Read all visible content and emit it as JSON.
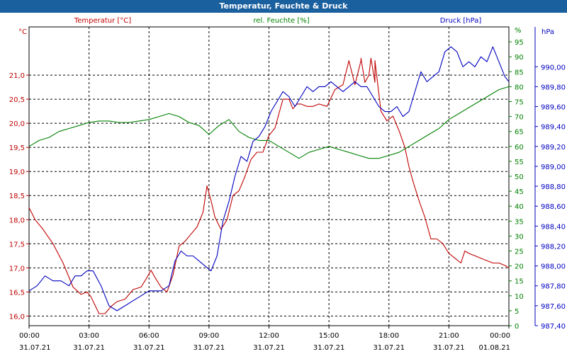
{
  "window": {
    "title": "Temperatur, Feuchte & Druck"
  },
  "chart_data": {
    "type": "line",
    "title": "Temperatur, Feuchte & Druck",
    "x_ticks": [
      {
        "time": "00:00",
        "date": "31.07.21"
      },
      {
        "time": "03:00",
        "date": "31.07.21"
      },
      {
        "time": "06:00",
        "date": "31.07.21"
      },
      {
        "time": "09:00",
        "date": "31.07.21"
      },
      {
        "time": "12:00",
        "date": "31.07.21"
      },
      {
        "time": "15:00",
        "date": "31.07.21"
      },
      {
        "time": "18:00",
        "date": "31.07.21"
      },
      {
        "time": "21:00",
        "date": "31.07.21"
      },
      {
        "time": "00:00",
        "date": "01.08.21"
      }
    ],
    "x_range_hours": [
      0,
      24
    ],
    "grid": true,
    "axes": {
      "temperature": {
        "label": "Temperatur [°C]",
        "unit": "°C",
        "range": [
          15.8,
          22.0
        ],
        "ticks": [
          "16,0",
          "16,5",
          "17,0",
          "17,5",
          "18,0",
          "18,5",
          "19,0",
          "19,5",
          "20,0",
          "20,5",
          "21,0"
        ],
        "tick_values": [
          16.0,
          16.5,
          17.0,
          17.5,
          18.0,
          18.5,
          19.0,
          19.5,
          20.0,
          20.5,
          21.0
        ],
        "color": "#c00000"
      },
      "humidity": {
        "label": "rel. Feuchte [%]",
        "unit": "%",
        "range": [
          0,
          100
        ],
        "ticks": [
          "0",
          "5",
          "10",
          "15",
          "20",
          "25",
          "30",
          "35",
          "40",
          "45",
          "50",
          "55",
          "60",
          "65",
          "70",
          "75",
          "80",
          "85",
          "90",
          "95"
        ],
        "tick_values": [
          0,
          5,
          10,
          15,
          20,
          25,
          30,
          35,
          40,
          45,
          50,
          55,
          60,
          65,
          70,
          75,
          80,
          85,
          90,
          95
        ],
        "unit_tick": "%",
        "color": "#008000"
      },
      "pressure": {
        "label": "Druck [hPa]",
        "unit": "hPa",
        "range": [
          987.4,
          990.4
        ],
        "ticks": [
          "987,40",
          "987,60",
          "987,80",
          "988,00",
          "988,20",
          "988,40",
          "988,60",
          "988,80",
          "989,00",
          "989,20",
          "989,40",
          "989,60",
          "989,80",
          "990,00"
        ],
        "tick_values": [
          987.4,
          987.6,
          987.8,
          988.0,
          988.2,
          988.4,
          988.6,
          988.8,
          989.0,
          989.2,
          989.4,
          989.6,
          989.8,
          990.0
        ],
        "color": "#0000c0"
      }
    },
    "series": [
      {
        "name": "Temperatur [°C]",
        "axis": "temperature",
        "color": "#c00000",
        "x": [
          0,
          0.3,
          0.7,
          1.2,
          1.7,
          2.2,
          2.6,
          2.9,
          3.1,
          3.5,
          3.8,
          4.1,
          4.4,
          4.8,
          5.2,
          5.6,
          5.9,
          6.1,
          6.3,
          6.6,
          6.9,
          7.2,
          7.5,
          7.8,
          8.1,
          8.4,
          8.7,
          8.9,
          9.1,
          9.3,
          9.6,
          9.9,
          10.2,
          10.5,
          10.8,
          11.1,
          11.4,
          11.7,
          12.0,
          12.3,
          12.5,
          12.7,
          13.0,
          13.2,
          13.4,
          13.6,
          13.9,
          14.2,
          14.5,
          14.9,
          15.3,
          15.7,
          16.0,
          16.3,
          16.6,
          16.8,
          17.0,
          17.3,
          17.6,
          17.9,
          18.2,
          18.5,
          18.8,
          19.0,
          19.2,
          19.5,
          19.8,
          20.1,
          20.4,
          20.7,
          21.0,
          21.3,
          21.6,
          21.8,
          22.0,
          22.3,
          22.6,
          22.9,
          23.2,
          23.5,
          23.8,
          24.0
        ],
        "values": [
          18.25,
          18.0,
          17.8,
          17.5,
          17.1,
          16.6,
          16.45,
          16.5,
          16.4,
          16.05,
          16.05,
          16.2,
          16.3,
          16.35,
          16.55,
          16.6,
          16.8,
          16.95,
          16.8,
          16.6,
          16.5,
          16.85,
          17.45,
          17.55,
          17.7,
          17.85,
          18.15,
          18.7,
          18.4,
          18.05,
          17.8,
          18.0,
          18.5,
          18.6,
          18.9,
          19.25,
          19.4,
          19.4,
          19.75,
          19.9,
          20.2,
          20.5,
          20.5,
          20.3,
          20.4,
          20.4,
          20.35,
          20.35,
          20.4,
          20.35,
          20.7,
          20.8,
          21.3,
          20.8,
          21.3,
          20.85,
          21.0,
          20.85,
          20.25,
          20.05,
          20.15,
          19.85,
          19.5,
          19.1,
          18.8,
          18.4,
          18.05,
          17.6,
          17.6,
          17.5,
          17.3,
          17.2,
          17.1,
          17.35,
          17.3,
          17.25,
          17.2,
          17.15,
          17.1,
          17.1,
          17.05,
          17.0
        ],
        "peak_values": {
          "at": [
            16.6,
            17.1,
            17.3
          ],
          "values": [
            21.35,
            21.35,
            21.3
          ]
        }
      },
      {
        "name": "rel. Feuchte [%]",
        "axis": "humidity",
        "color": "#008000",
        "x": [
          0,
          0.5,
          1.0,
          1.5,
          2.0,
          2.5,
          3.0,
          3.5,
          4.0,
          4.5,
          5.0,
          5.5,
          6.0,
          6.5,
          7.0,
          7.5,
          8.0,
          8.5,
          9.0,
          9.5,
          10.0,
          10.5,
          11.0,
          11.5,
          12.0,
          12.5,
          13.0,
          13.5,
          14.0,
          14.5,
          15.0,
          15.5,
          16.0,
          16.5,
          17.0,
          17.5,
          18.0,
          18.5,
          19.0,
          19.5,
          20.0,
          20.5,
          21.0,
          21.5,
          22.0,
          22.5,
          23.0,
          23.5,
          24.0
        ],
        "values": [
          60,
          62,
          63,
          65,
          66,
          67,
          68,
          68.5,
          68.5,
          68,
          68,
          68.5,
          69,
          70,
          71,
          70,
          68,
          67,
          64,
          67,
          69,
          65,
          63,
          62,
          62,
          60,
          58,
          56,
          58,
          59,
          60,
          59,
          58,
          57,
          56,
          56,
          57,
          58,
          60,
          62,
          64,
          66,
          69,
          71,
          73,
          75,
          77,
          79,
          80
        ],
        "max_value": 81
      },
      {
        "name": "Druck [hPa]",
        "axis": "pressure",
        "color": "#0000c0",
        "x": [
          0,
          0.4,
          0.8,
          1.2,
          1.6,
          2.0,
          2.3,
          2.6,
          2.9,
          3.2,
          3.6,
          4.0,
          4.4,
          4.8,
          5.2,
          5.6,
          6.0,
          6.3,
          6.6,
          7.0,
          7.3,
          7.6,
          7.9,
          8.2,
          8.5,
          8.8,
          9.1,
          9.4,
          9.7,
          10.0,
          10.3,
          10.6,
          10.9,
          11.2,
          11.5,
          11.8,
          12.1,
          12.4,
          12.7,
          13.0,
          13.3,
          13.6,
          13.9,
          14.2,
          14.5,
          14.8,
          15.1,
          15.4,
          15.7,
          16.0,
          16.3,
          16.6,
          16.9,
          17.2,
          17.5,
          17.8,
          18.1,
          18.4,
          18.7,
          19.0,
          19.3,
          19.6,
          19.9,
          20.2,
          20.5,
          20.8,
          21.1,
          21.4,
          21.7,
          22.0,
          22.3,
          22.6,
          22.9,
          23.2,
          23.5,
          23.8,
          24.0
        ],
        "values": [
          987.75,
          987.8,
          987.9,
          987.85,
          987.85,
          987.8,
          987.9,
          987.9,
          987.95,
          987.95,
          987.8,
          987.6,
          987.55,
          987.6,
          987.65,
          987.7,
          987.75,
          987.75,
          987.75,
          987.8,
          988.05,
          988.15,
          988.1,
          988.1,
          988.05,
          988.0,
          987.95,
          988.1,
          988.45,
          988.65,
          988.9,
          989.1,
          989.05,
          989.25,
          989.3,
          989.4,
          989.55,
          989.65,
          989.75,
          989.7,
          989.6,
          989.7,
          989.8,
          989.75,
          989.8,
          989.8,
          989.85,
          989.8,
          989.75,
          989.8,
          989.85,
          989.8,
          989.8,
          989.7,
          989.6,
          989.55,
          989.55,
          989.6,
          989.5,
          989.55,
          989.75,
          989.95,
          989.85,
          989.9,
          989.95,
          990.15,
          990.2,
          990.15,
          990.0,
          990.05,
          990.0,
          990.1,
          990.05,
          990.2,
          990.05,
          989.9,
          989.85
        ]
      }
    ]
  }
}
